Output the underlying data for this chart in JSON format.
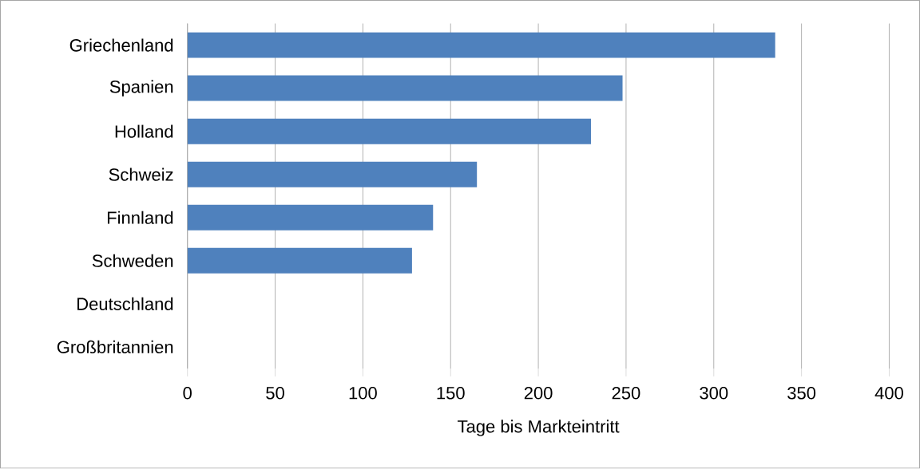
{
  "chart_data": {
    "type": "bar",
    "orientation": "horizontal",
    "xlabel": "Tage bis Markteintritt",
    "categories": [
      "Griechenland",
      "Spanien",
      "Holland",
      "Schweiz",
      "Finnland",
      "Schweden",
      "Deutschland",
      "Großbritannien"
    ],
    "values": [
      335,
      248,
      230,
      165,
      140,
      128,
      0,
      0
    ],
    "color": "#4f81bd",
    "xlim": [
      0,
      400
    ],
    "xticks": [
      0,
      50,
      100,
      150,
      200,
      250,
      300,
      350,
      400
    ],
    "grid": "x"
  }
}
